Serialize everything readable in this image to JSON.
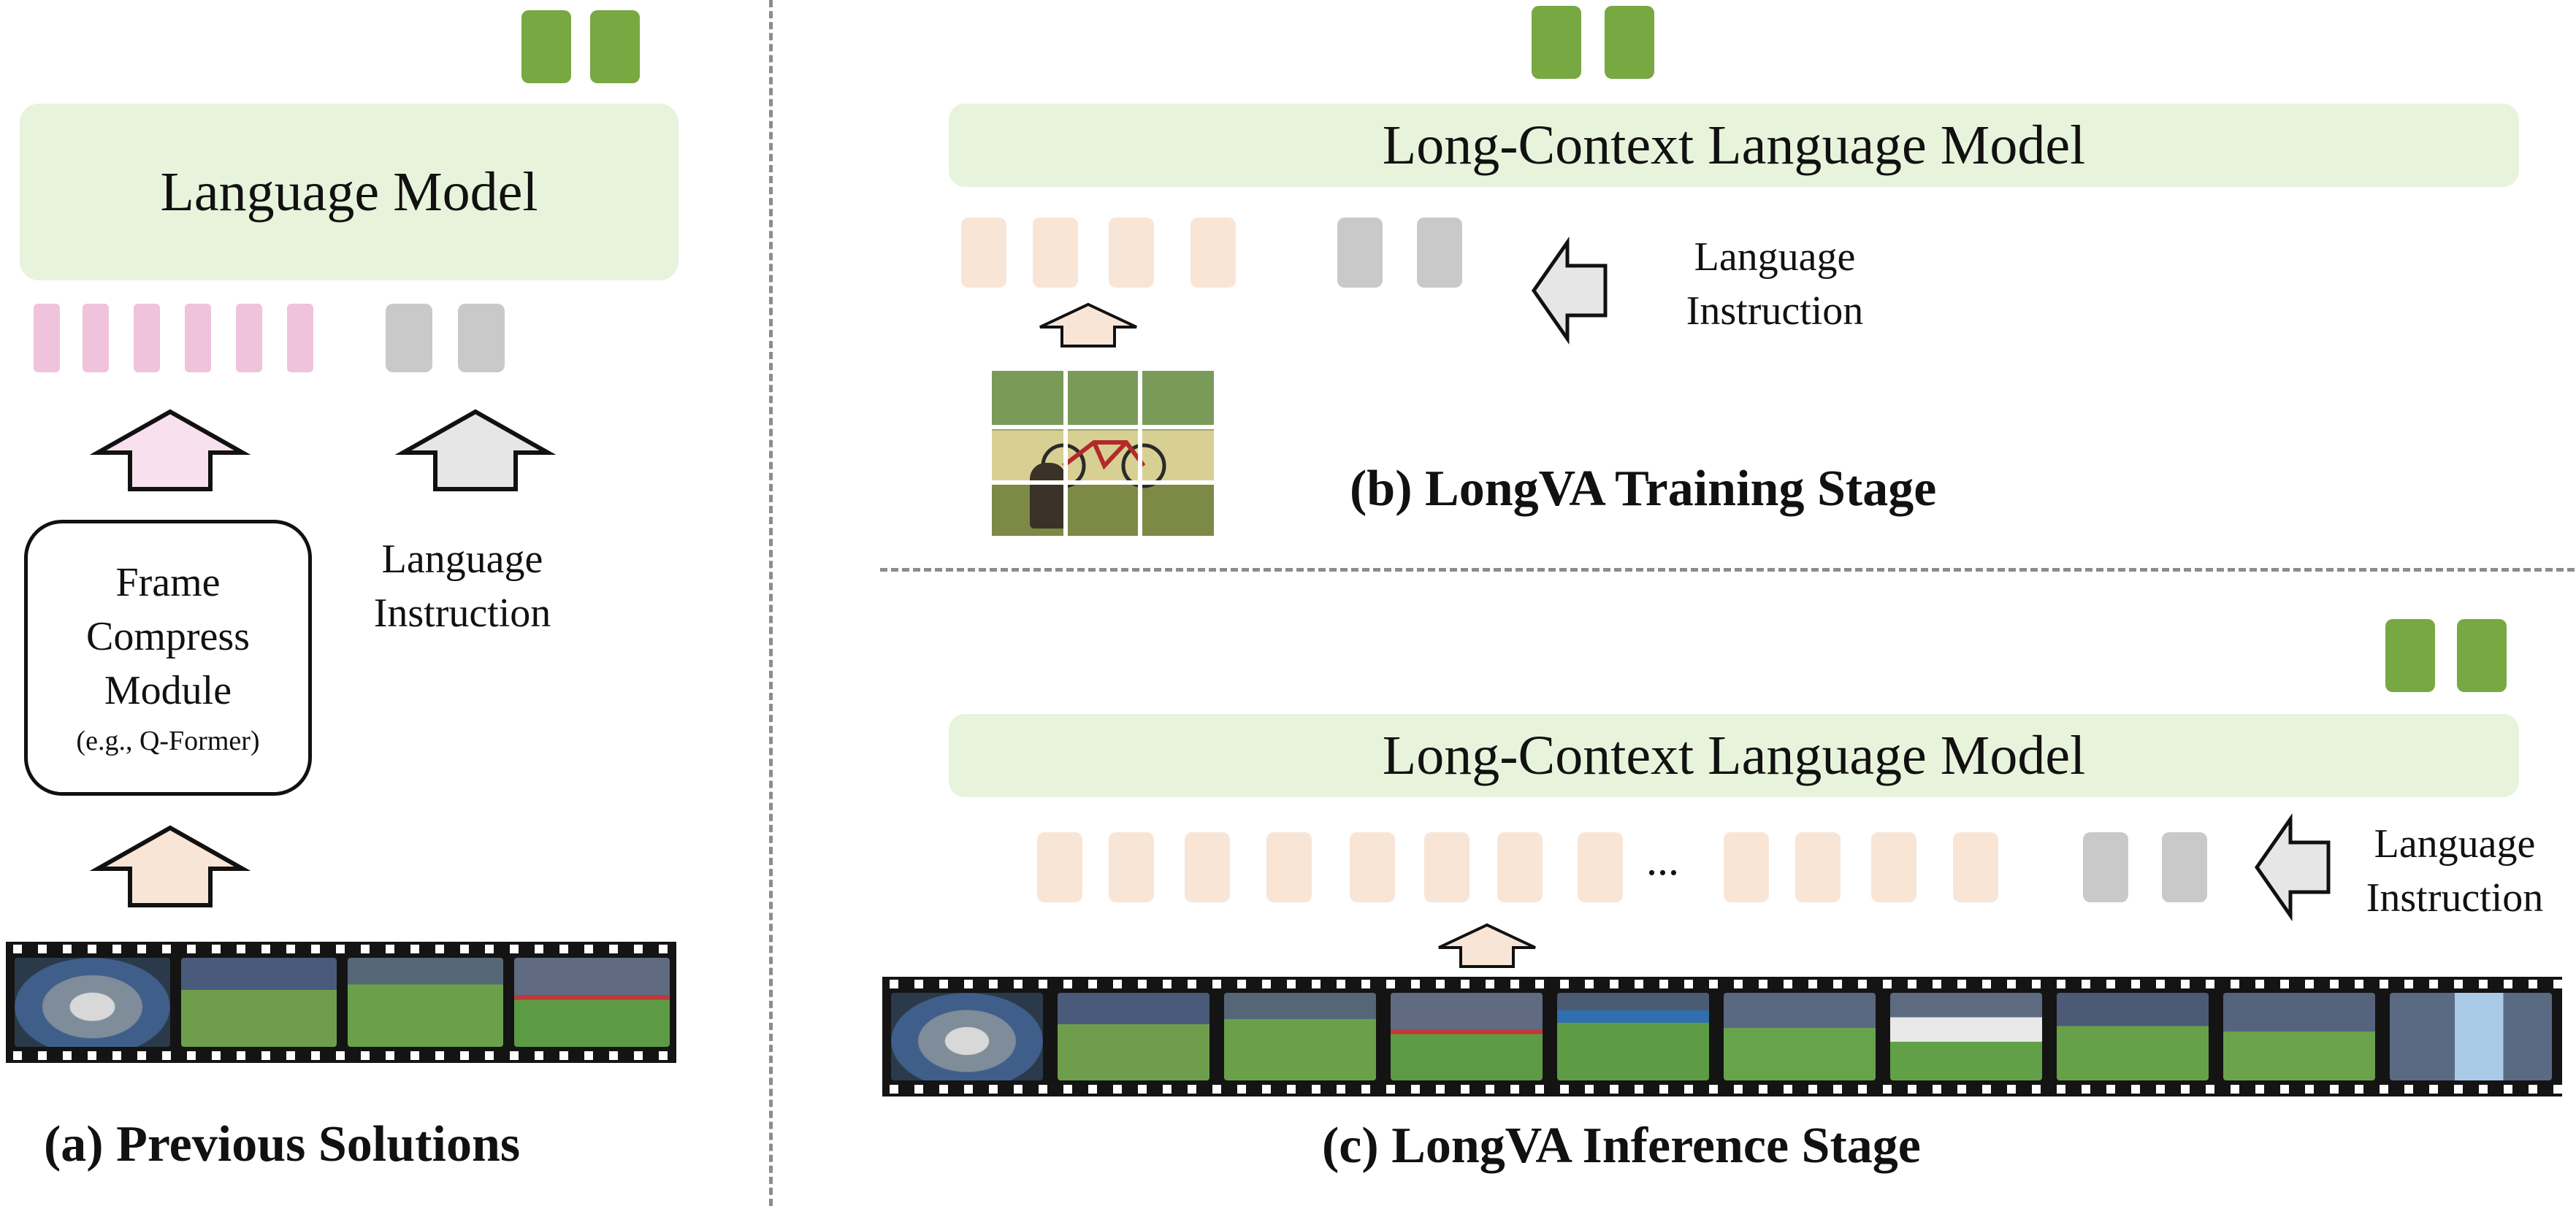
{
  "panel_a": {
    "language_model": "Language Model",
    "compress_module": {
      "line1": "Frame",
      "line2": "Compress",
      "line3": "Module",
      "sub": "(e.g., Q-Former)"
    },
    "language_instruction": {
      "line1": "Language",
      "line2": "Instruction"
    },
    "caption": "(a) Previous Solutions"
  },
  "panel_b": {
    "language_model": "Long-Context Language Model",
    "language_instruction": {
      "line1": "Language",
      "line2": "Instruction"
    },
    "caption": "(b) LongVA Training Stage"
  },
  "panel_c": {
    "language_model": "Long-Context Language Model",
    "ellipsis": "...",
    "language_instruction": {
      "line1": "Language",
      "line2": "Instruction"
    },
    "caption": "(c) LongVA Inference Stage"
  },
  "colors": {
    "output_token": "#78a842",
    "language_model_fill": "#e8f3dc",
    "compressed_token": "#efc3dc",
    "visual_token": "#f9e5d6",
    "text_token": "#c9c9c9",
    "visual_arrow_fill": "#f9e5d6",
    "compress_arrow_fill": "#f8e0ee",
    "text_arrow_fill": "#e6e6e6",
    "divider": "#8c8c8c"
  }
}
